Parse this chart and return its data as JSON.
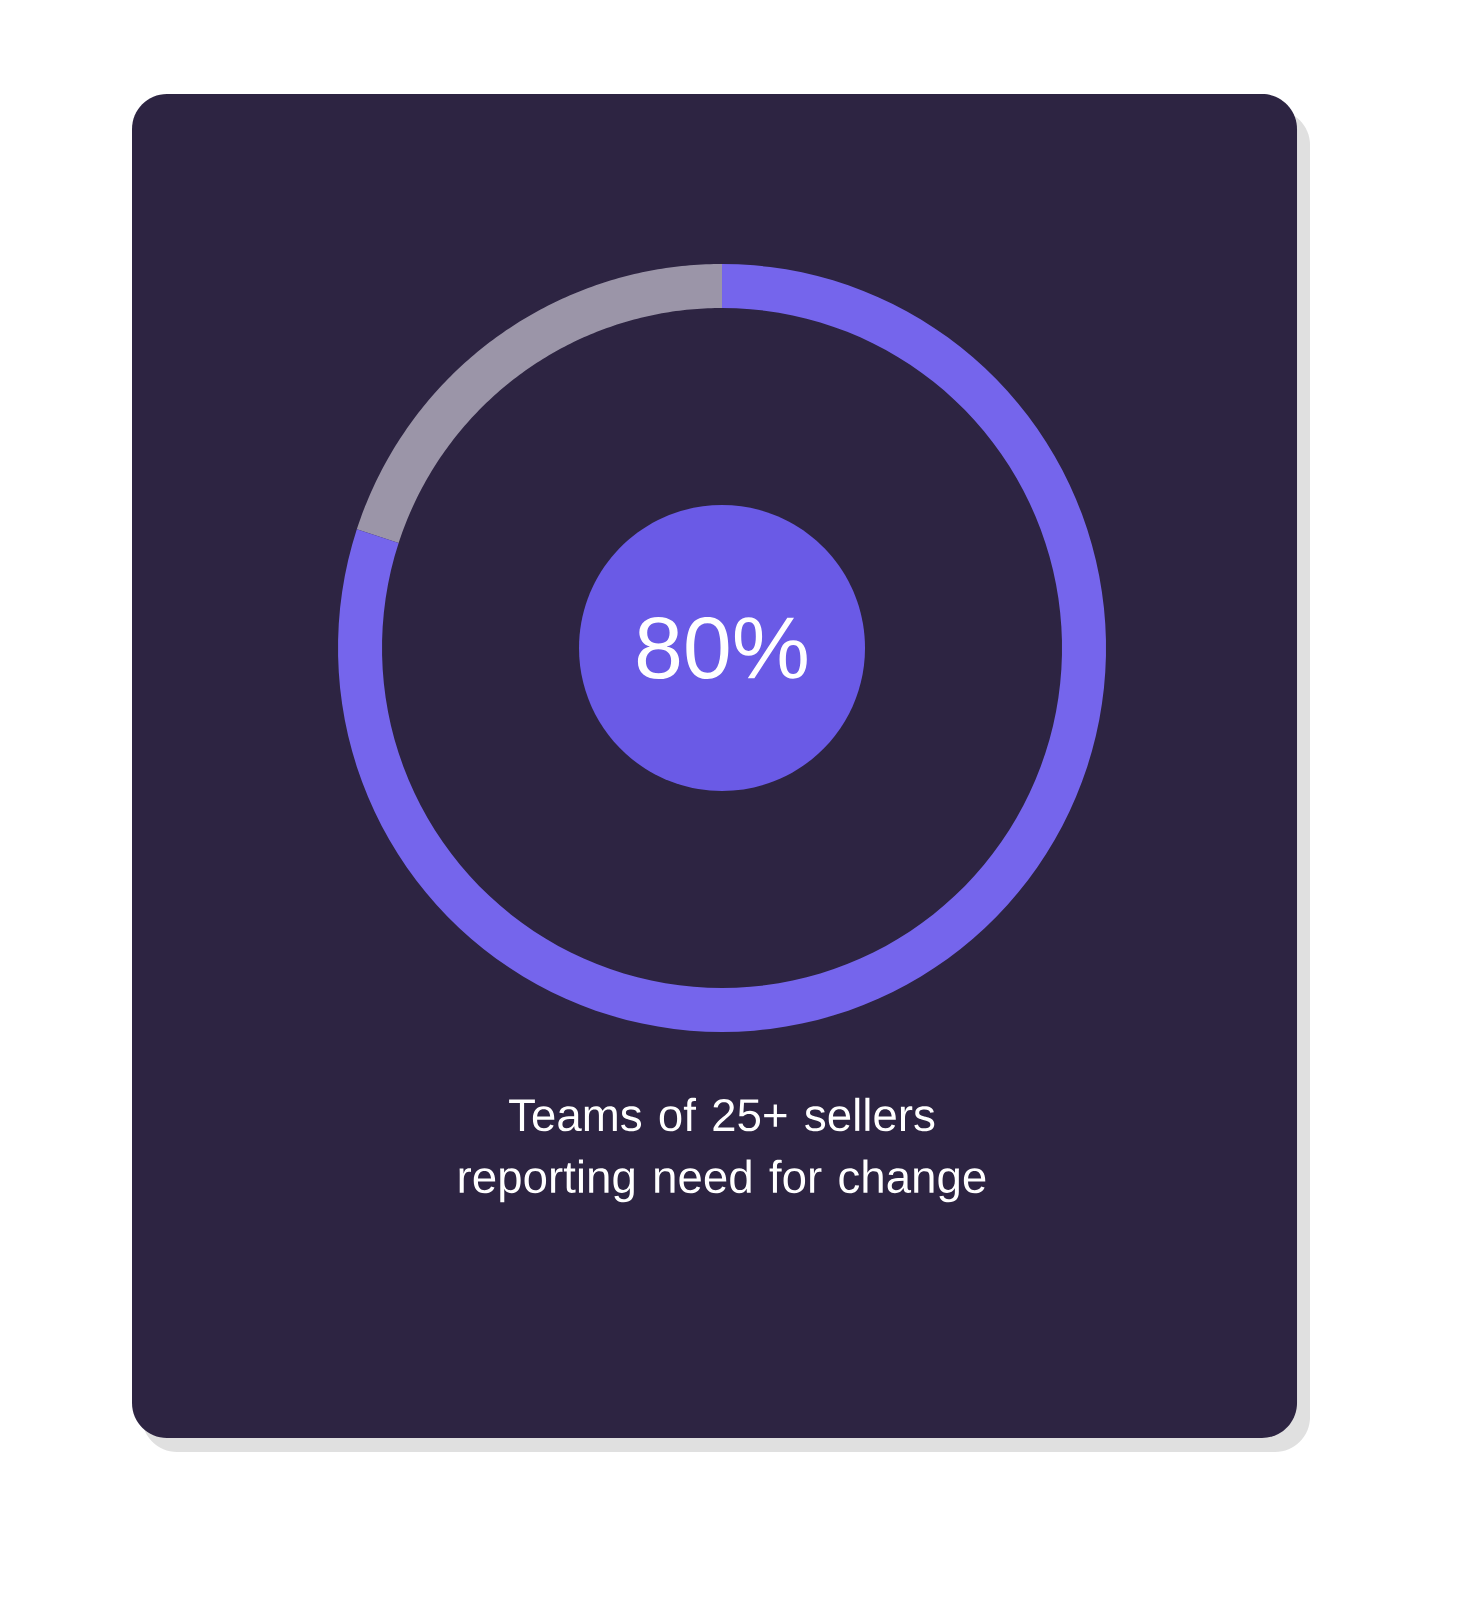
{
  "chart_data": {
    "type": "donut",
    "title": "Teams of 25+ sellers reporting need for change",
    "categories": [
      null,
      null
    ],
    "values": [
      80,
      20
    ],
    "colors": [
      "#7565ec",
      "#9b95a8"
    ],
    "annotations": [
      "80%"
    ]
  }
}
